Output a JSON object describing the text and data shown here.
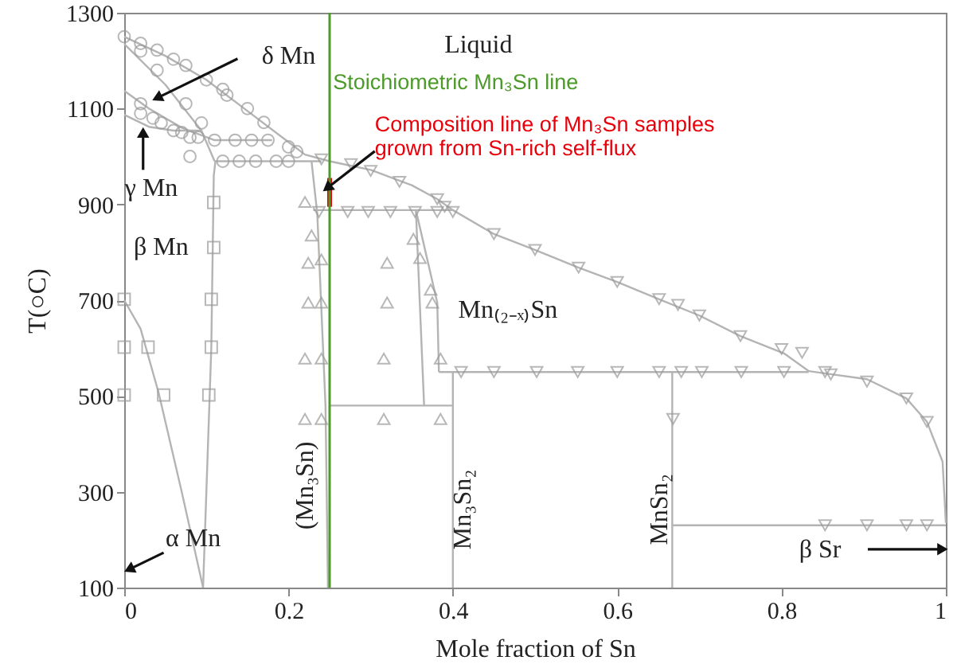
{
  "chart_data": {
    "type": "line",
    "xlabel": "Mole fraction of Sn",
    "ylabel": "T(○C)",
    "xlim": [
      0,
      1
    ],
    "ylim": [
      100,
      1300
    ],
    "xticks": [
      0,
      0.2,
      0.4,
      0.6,
      0.8,
      1
    ],
    "yticks": [
      100,
      300,
      500,
      700,
      900,
      1100,
      1300
    ],
    "grid": false,
    "series": [
      {
        "type": "line",
        "color": "#b4b4b4",
        "x": [
          0,
          0.05,
          0.1,
          0.15,
          0.2,
          0.22,
          0.25,
          0.3,
          0.35,
          0.381,
          0.4,
          0.45,
          0.5,
          0.553,
          0.6,
          0.651,
          0.7,
          0.75,
          0.803,
          0.833,
          0.904,
          0.952,
          0.977,
          0.996,
          1
        ],
        "values": [
          1250,
          1210,
          1160,
          1095,
          1030,
          1004,
          990,
          972,
          940,
          911,
          888,
          838,
          805,
          768,
          738,
          702,
          668,
          625,
          589,
          552,
          535,
          495,
          446,
          363,
          235
        ]
      },
      {
        "type": "line",
        "color": "#b4b4b4",
        "x": [
          0,
          0.05,
          0.094,
          0.11
        ],
        "values": [
          1235,
          1150,
          1054,
          990
        ]
      },
      {
        "type": "line",
        "color": "#b4b4b4",
        "x": [
          0,
          0.03,
          0.07,
          0.11,
          0.18
        ],
        "values": [
          1137,
          1100,
          1060,
          1034,
          1034
        ]
      },
      {
        "type": "line",
        "color": "#b4b4b4",
        "x": [
          0,
          0.03,
          0.06,
          0.094
        ],
        "values": [
          1087,
          1062,
          1054,
          1054
        ]
      },
      {
        "type": "line",
        "color": "#b4b4b4",
        "x": [
          0.11,
          0.24
        ],
        "values": [
          990,
          990
        ]
      },
      {
        "type": "line",
        "color": "#b4b4b4",
        "x": [
          0.111,
          0.109,
          0.106,
          0.096
        ],
        "values": [
          990,
          960,
          600,
          100
        ]
      },
      {
        "type": "line",
        "color": "#b4b4b4",
        "x": [
          0,
          0.02,
          0.042,
          0.07,
          0.096
        ],
        "values": [
          700,
          640,
          506,
          300,
          100
        ]
      },
      {
        "type": "line",
        "color": "#b4b4b4",
        "x": [
          0.228,
          0.235,
          0.245,
          0.248
        ],
        "values": [
          990,
          880,
          480,
          100
        ]
      },
      {
        "type": "line",
        "color": "#b4b4b4",
        "x": [
          0.23,
          0.4
        ],
        "values": [
          888,
          888
        ]
      },
      {
        "type": "line",
        "color": "#b4b4b4",
        "x": [
          0.25,
          0.4
        ],
        "values": [
          480,
          480
        ]
      },
      {
        "type": "line",
        "color": "#b4b4b4",
        "x": [
          0.355,
          0.365
        ],
        "values": [
          888,
          480
        ]
      },
      {
        "type": "line",
        "color": "#b4b4b4",
        "x": [
          0.355,
          0.381,
          0.383
        ],
        "values": [
          888,
          695,
          550
        ]
      },
      {
        "type": "line",
        "color": "#b4b4b4",
        "x": [
          0.383,
          0.833
        ],
        "values": [
          550,
          550
        ]
      },
      {
        "type": "line",
        "color": "#b4b4b4",
        "x": [
          0.4,
          0.4
        ],
        "values": [
          550,
          100
        ]
      },
      {
        "type": "line",
        "color": "#b4b4b4",
        "x": [
          0.667,
          0.667
        ],
        "values": [
          550,
          100
        ]
      },
      {
        "type": "line",
        "color": "#b4b4b4",
        "x": [
          0.667,
          1
        ],
        "values": [
          230,
          230
        ]
      },
      {
        "type": "scatter",
        "marker": "circle",
        "color": "#9a9a9a",
        "x": [
          0,
          0.02,
          0.04,
          0.06,
          0.075,
          0.1,
          0.12,
          0.125,
          0.15,
          0.17,
          0.2,
          0.21,
          0.02,
          0.04,
          0.075,
          0.094,
          0.02,
          0.02,
          0.035,
          0.045,
          0.06,
          0.07,
          0.08,
          0.09,
          0.11,
          0.135,
          0.155,
          0.175,
          0.08,
          0.12,
          0.14,
          0.16,
          0.185,
          0.2
        ],
        "values": [
          1250,
          1236,
          1222,
          1203,
          1190,
          1160,
          1140,
          1128,
          1100,
          1071,
          1020,
          1010,
          1220,
          1180,
          1110,
          1070,
          1110,
          1090,
          1080,
          1070,
          1054,
          1050,
          1040,
          1040,
          1034,
          1034,
          1034,
          1034,
          1000,
          990,
          990,
          990,
          990,
          990
        ]
      },
      {
        "type": "scatter",
        "marker": "square",
        "color": "#9a9a9a",
        "x": [
          0.109,
          0.109,
          0.106,
          0.106,
          0.103,
          0,
          0,
          0.029,
          0,
          0.048
        ],
        "values": [
          904,
          810,
          702,
          602,
          502,
          702,
          602,
          602,
          502,
          502
        ]
      },
      {
        "type": "scatter",
        "marker": "triangle-up",
        "color": "#9a9a9a",
        "x": [
          0.22,
          0.228,
          0.24,
          0.224,
          0.32,
          0.352,
          0.36,
          0.373,
          0.224,
          0.24,
          0.32,
          0.375,
          0.22,
          0.24,
          0.316,
          0.385,
          0.22,
          0.24,
          0.316,
          0.385
        ],
        "values": [
          905,
          835,
          785,
          778,
          778,
          828,
          788,
          722,
          695,
          695,
          695,
          695,
          578,
          578,
          578,
          578,
          452,
          452,
          452,
          452
        ]
      },
      {
        "type": "scatter",
        "marker": "triangle-down",
        "color": "#9a9a9a",
        "x": [
          0.237,
          0.272,
          0.297,
          0.324,
          0.354,
          0.381,
          0.4,
          0.24,
          0.276,
          0.3,
          0.335,
          0.381,
          0.39,
          0.45,
          0.5,
          0.553,
          0.6,
          0.651,
          0.674,
          0.7,
          0.75,
          0.8,
          0.825,
          0.86,
          0.904,
          0.952,
          0.977,
          0.41,
          0.45,
          0.502,
          0.552,
          0.6,
          0.651,
          0.678,
          0.703,
          0.751,
          0.803,
          0.853,
          0.668,
          0.853,
          0.904,
          0.952,
          0.977
        ],
        "values": [
          884,
          884,
          884,
          884,
          884,
          884,
          884,
          994,
          984,
          970,
          947,
          911,
          895,
          838,
          805,
          768,
          738,
          702,
          690,
          668,
          625,
          598,
          590,
          545,
          530,
          495,
          446,
          550,
          550,
          550,
          550,
          550,
          550,
          550,
          550,
          550,
          550,
          550,
          452,
          230,
          230,
          230,
          230
        ]
      },
      {
        "name": "Composition line of Mn₃Sn samples grown from Sn-rich self-flux",
        "color": "#e8000b",
        "x": [
          0.25,
          0.25
        ],
        "values": [
          895,
          955
        ]
      }
    ],
    "ref_lines": [
      {
        "axis": "x",
        "value": 0.25,
        "label": "Stoichiometric Mn₃Sn line",
        "color": "#4c9a2a"
      }
    ],
    "annotations": [
      "Liquid",
      "δ Mn",
      "γ Mn",
      "β Mn",
      "α Mn",
      "Mn₍₂₋ₓ₎Sn",
      "(Mn₃Sn)",
      "Mn₃Sn₂",
      "MnSn₂",
      "β Sr"
    ]
  }
}
